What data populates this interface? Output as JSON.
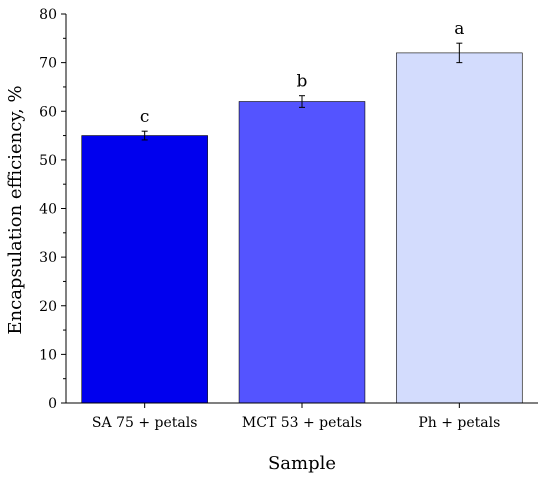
{
  "chart_data": {
    "type": "bar",
    "categories": [
      "SA 75 + petals",
      "MCT 53 + petals",
      "Ph + petals"
    ],
    "values": [
      55,
      62,
      72
    ],
    "errors": [
      0.9,
      1.2,
      2.0
    ],
    "labels": [
      "c",
      "b",
      "a"
    ],
    "colors": [
      "#0000ee",
      "#5454ff",
      "#d3dcfd"
    ],
    "xlabel": "Sample",
    "ylabel": "Encapsulation efficiency, %",
    "ylim": [
      0,
      80
    ],
    "yticks": [
      0,
      10,
      20,
      30,
      40,
      50,
      60,
      70,
      80
    ],
    "grid": false
  }
}
